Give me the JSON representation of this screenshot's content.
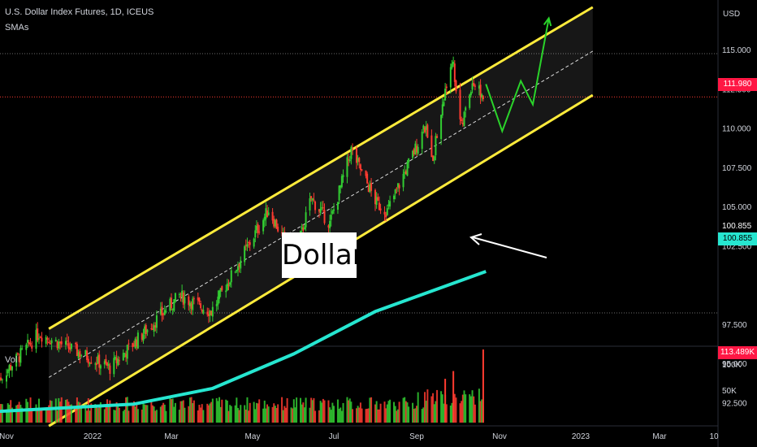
{
  "header": {
    "title": "U.S. Dollar Index Futures, 1D, ICEUS",
    "indicator": "SMAs"
  },
  "volume_pane": {
    "label": "Vol",
    "y_ticks": [
      "100K",
      "50K"
    ],
    "last_value": "113.489K",
    "last_value_color": "#ff1744"
  },
  "price_tags": {
    "last_price": "111.980",
    "last_price_color": "#ff1744",
    "sma": "100.855",
    "sma_color": "#26e6d0",
    "sma_plain": "100.855"
  },
  "annotations": {
    "label": "Dollar"
  },
  "colors": {
    "channel": "#ffeb3b",
    "sma_line": "#26e6d0",
    "projection": "#2ad32a",
    "up_candle": "#32cd32",
    "down_candle": "#ff3b30",
    "arrow": "#ffffff"
  },
  "chart_data": {
    "type": "candlestick",
    "currency_label": "USD",
    "y_ticks": [
      "115.000",
      "112.500",
      "110.000",
      "107.500",
      "105.000",
      "102.500",
      "97.500",
      "95.000",
      "92.500"
    ],
    "x_ticks": [
      "Nov",
      "2022",
      "Mar",
      "May",
      "Jul",
      "Sep",
      "Nov",
      "2023",
      "Mar",
      "10"
    ],
    "ylim": [
      91.0,
      117.7
    ],
    "key_points": [
      {
        "date": "2021-10-26",
        "close": 93.9
      },
      {
        "date": "2021-11-24",
        "close": 96.9
      },
      {
        "date": "2022-01-14",
        "close": 94.7
      },
      {
        "date": "2022-03-07",
        "close": 99.3
      },
      {
        "date": "2022-03-31",
        "close": 98.3
      },
      {
        "date": "2022-05-13",
        "close": 104.8
      },
      {
        "date": "2022-06-01",
        "close": 101.6
      },
      {
        "date": "2022-06-14",
        "close": 105.5
      },
      {
        "date": "2022-06-28",
        "close": 103.9
      },
      {
        "date": "2022-07-14",
        "close": 108.6
      },
      {
        "date": "2022-08-02",
        "close": 105.2
      },
      {
        "date": "2022-08-10",
        "close": 104.7
      },
      {
        "date": "2022-09-07",
        "close": 110.0
      },
      {
        "date": "2022-09-13",
        "close": 108.2
      },
      {
        "date": "2022-09-27",
        "close": 114.5
      },
      {
        "date": "2022-10-04",
        "close": 110.0
      },
      {
        "date": "2022-10-12",
        "close": 113.0
      },
      {
        "date": "2022-10-20",
        "close": 111.98
      }
    ],
    "channel_upper": [
      {
        "date": "2021-12-01",
        "value": 97.2
      },
      {
        "date": "2023-01-10",
        "value": 117.7
      }
    ],
    "channel_lower": [
      {
        "date": "2021-12-01",
        "value": 91.0
      },
      {
        "date": "2023-01-10",
        "value": 112.1
      }
    ],
    "sma": [
      {
        "date": "2021-10-20",
        "value": 91.9
      },
      {
        "date": "2022-02-01",
        "value": 92.4
      },
      {
        "date": "2022-04-01",
        "value": 93.4
      },
      {
        "date": "2022-06-01",
        "value": 95.6
      },
      {
        "date": "2022-08-01",
        "value": 98.3
      },
      {
        "date": "2022-10-22",
        "value": 100.855
      }
    ],
    "projection": [
      {
        "date": "2022-10-22",
        "value": 112.8
      },
      {
        "date": "2022-11-03",
        "value": 109.8
      },
      {
        "date": "2022-11-17",
        "value": 113.0
      },
      {
        "date": "2022-11-26",
        "value": 111.5
      },
      {
        "date": "2022-12-08",
        "value": 117.0
      }
    ],
    "volume_max": 113.489,
    "volume_ticks": [
      100,
      50
    ]
  }
}
